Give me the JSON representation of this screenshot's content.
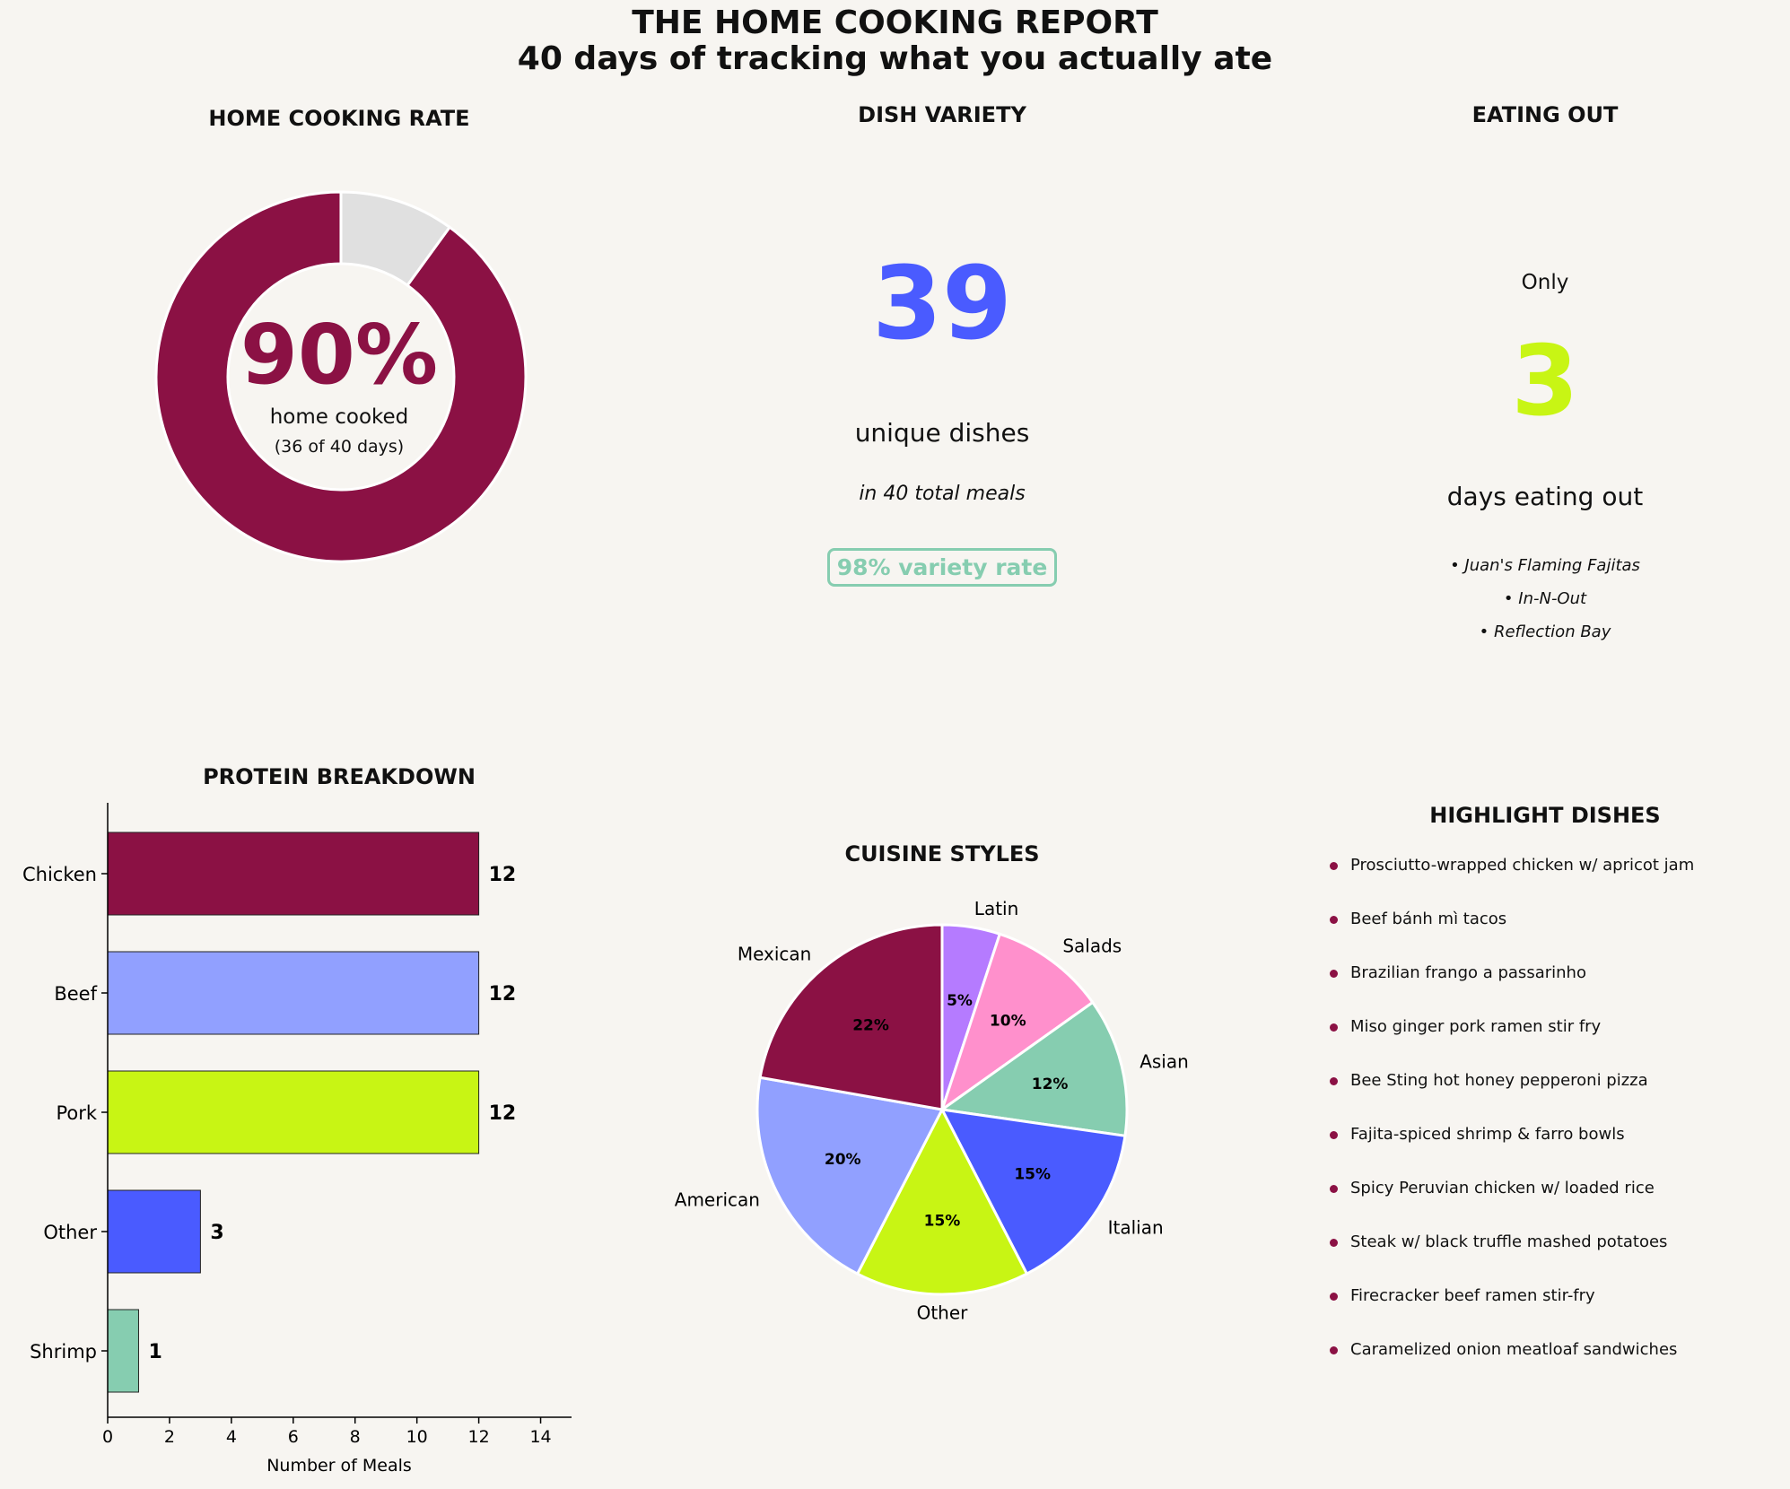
{
  "header": {
    "title": "THE HOME COOKING REPORT",
    "subtitle": "40 days of tracking what you actually ate"
  },
  "home_cooking": {
    "title": "HOME COOKING RATE",
    "percent_label": "90%",
    "caption": "home cooked",
    "detail": "(36 of 40 days)",
    "fraction": 0.9,
    "colors": {
      "filled": "#8b1144",
      "remaining": "#e0e0e0"
    }
  },
  "dish_variety": {
    "title": "DISH VARIETY",
    "count": "39",
    "caption": "unique dishes",
    "detail": "in 40 total meals",
    "badge": "98% variety rate"
  },
  "eating_out": {
    "title": "EATING OUT",
    "prefix": "Only",
    "count": "3",
    "caption": "days eating out",
    "places": [
      "• Juan's Flaming Fajitas",
      "• In-N-Out",
      "• Reflection Bay"
    ],
    "color": "#c8f514"
  },
  "highlights": {
    "title": "HIGHLIGHT DISHES",
    "items": [
      "Prosciutto-wrapped chicken w/ apricot jam",
      "Beef bánh mì tacos",
      "Brazilian frango a passarinho",
      "Miso ginger pork ramen stir fry",
      "Bee Sting hot honey pepperoni pizza",
      "Fajita-spiced shrimp & farro bowls",
      "Spicy Peruvian chicken w/ loaded rice",
      "Steak w/ black truffle mashed potatoes",
      "Firecracker beef ramen stir-fry",
      "Caramelized onion meatloaf sandwiches"
    ]
  },
  "chart_data": [
    {
      "type": "bar",
      "orientation": "horizontal",
      "title": "PROTEIN BREAKDOWN",
      "categories": [
        "Chicken",
        "Beef",
        "Pork",
        "Other",
        "Shrimp"
      ],
      "values": [
        12,
        12,
        12,
        3,
        1
      ],
      "colors": [
        "#8b1144",
        "#91a0ff",
        "#c8f514",
        "#4a5bff",
        "#86cdb0"
      ],
      "xlabel": "Number of Meals",
      "xlim": [
        0,
        15
      ],
      "xticks": [
        0,
        2,
        4,
        6,
        8,
        10,
        12,
        14
      ],
      "grid": false
    },
    {
      "type": "pie",
      "title": "CUISINE STYLES",
      "labels": [
        "Latin",
        "Salads",
        "Asian",
        "Italian",
        "Other",
        "American",
        "Mexican"
      ],
      "values": [
        5,
        10,
        12,
        15,
        15,
        20,
        22
      ],
      "pct_labels": [
        "5%",
        "10%",
        "12%",
        "15%",
        "15%",
        "20%",
        "22%"
      ],
      "colors": [
        "#b57bff",
        "#ff90cc",
        "#86cdb0",
        "#4a5bff",
        "#c8f514",
        "#91a0ff",
        "#8b1144"
      ]
    }
  ]
}
